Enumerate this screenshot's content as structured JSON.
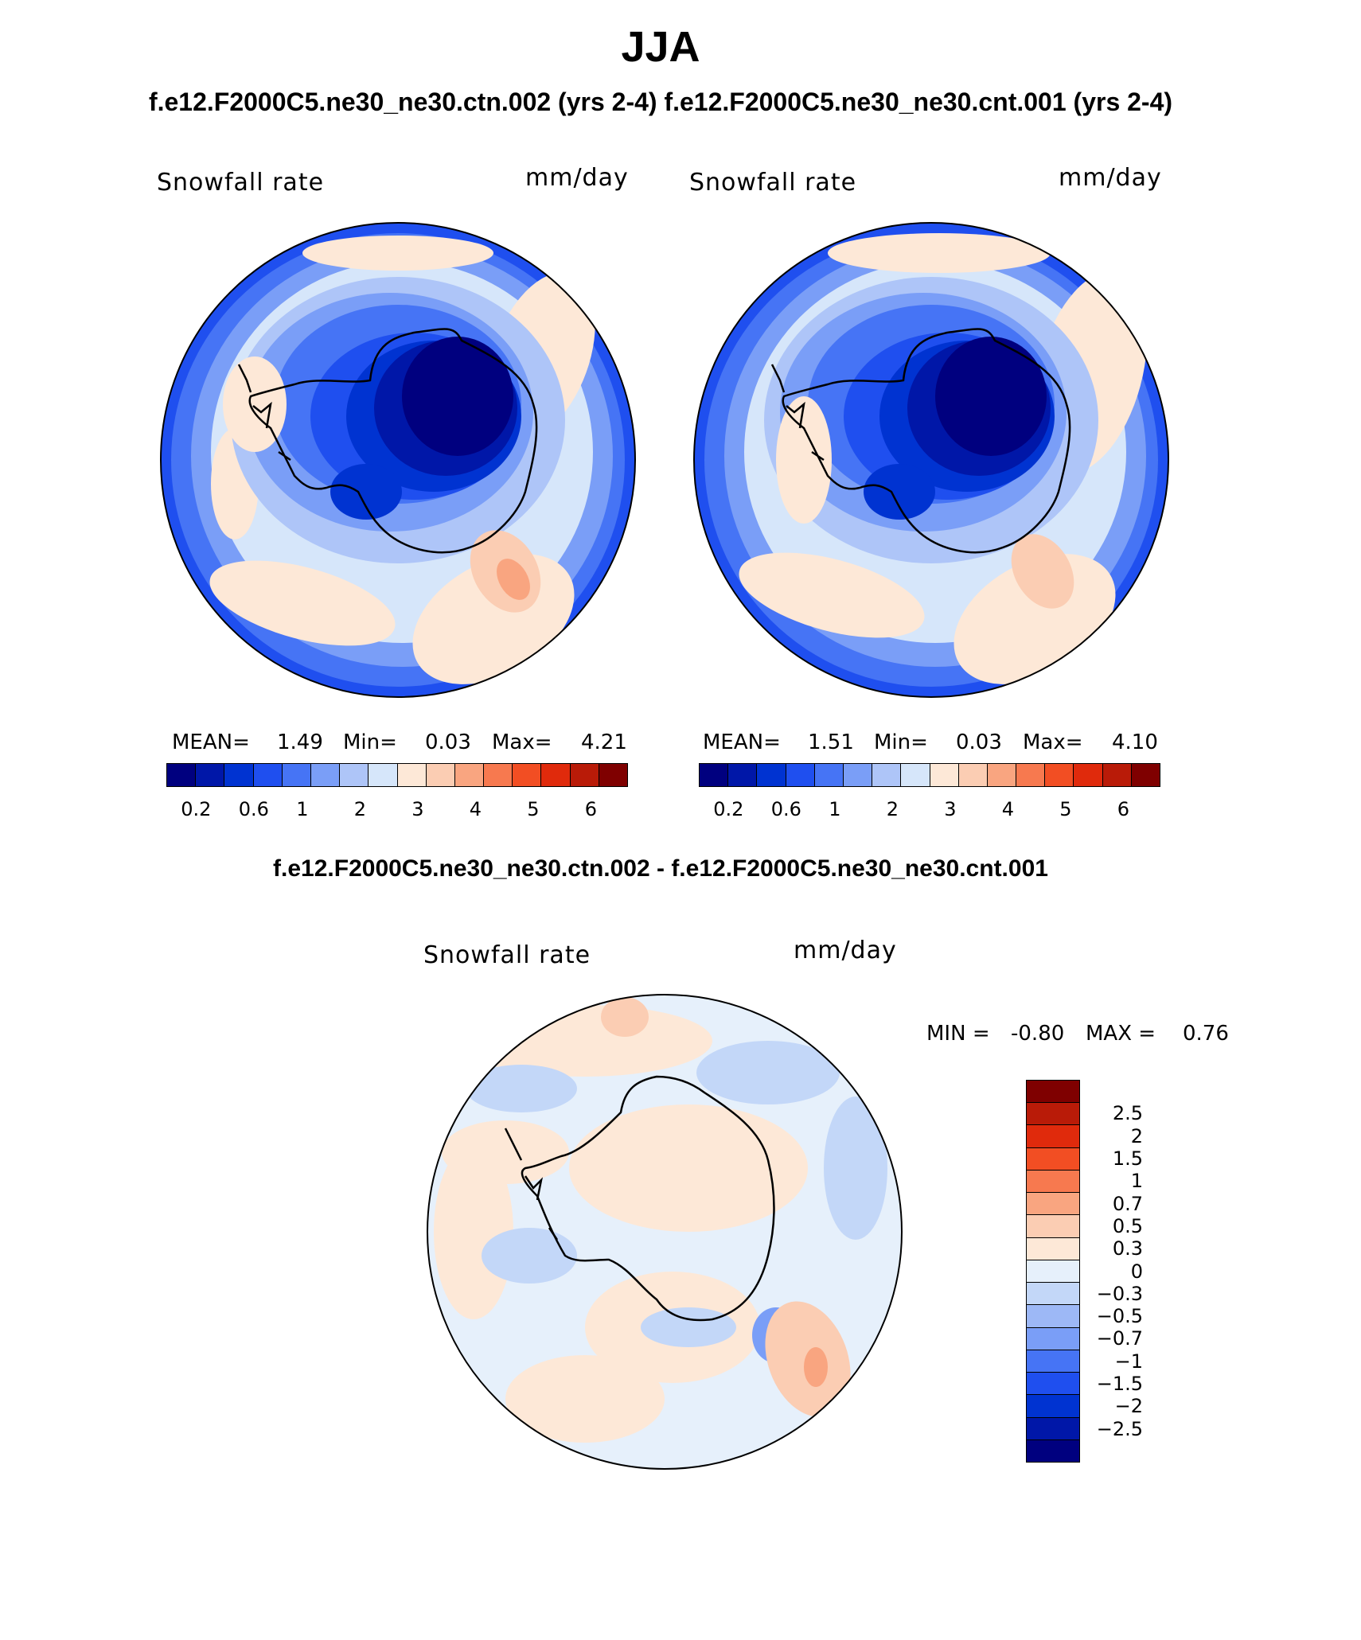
{
  "header": {
    "season": "JJA",
    "cases": "f.e12.F2000C5.ne30_ne30.ctn.002 (yrs 2-4) f.e12.F2000C5.ne30_ne30.cnt.001 (yrs 2-4)"
  },
  "panels": [
    {
      "variable": "Snowfall rate",
      "units": "mm/day",
      "mean_label": "MEAN=",
      "mean": "1.49",
      "min_label": "Min=",
      "min": "0.03",
      "max_label": "Max=",
      "max": "4.21"
    },
    {
      "variable": "Snowfall rate",
      "units": "mm/day",
      "mean_label": "MEAN=",
      "mean": "1.51",
      "min_label": "Min=",
      "min": "0.03",
      "max_label": "Max=",
      "max": "4.10"
    }
  ],
  "abs_colorbar": {
    "colors": [
      "#00007f",
      "#0017a8",
      "#0033d1",
      "#1f4fef",
      "#4674f5",
      "#7a9ef7",
      "#aec5f8",
      "#d6e6fa",
      "#fde8d7",
      "#fbcdb3",
      "#f9a580",
      "#f7794f",
      "#f24e23",
      "#e02a0c",
      "#b91b08",
      "#7f0000"
    ],
    "tick_labels": [
      "0.2",
      "0.6",
      "1",
      "2",
      "3",
      "4",
      "5",
      "6"
    ]
  },
  "diff_panel": {
    "title": "f.e12.F2000C5.ne30_ne30.ctn.002 - f.e12.F2000C5.ne30_ne30.cnt.001",
    "variable": "Snowfall rate",
    "units": "mm/day",
    "min_label": "MIN =",
    "min": "-0.80",
    "max_label": "MAX =",
    "max": "0.76",
    "colorbar": {
      "colors_top_to_bottom": [
        "#7f0000",
        "#b91b08",
        "#e02a0c",
        "#f24e23",
        "#f7794f",
        "#f9a580",
        "#fbcdb3",
        "#fde8d7",
        "#e6f0fb",
        "#c3d7f8",
        "#9db8f6",
        "#7a9ef7",
        "#4674f5",
        "#1f4fef",
        "#0033d1",
        "#0017a8",
        "#00007f"
      ],
      "tick_labels": [
        "2.5",
        "2",
        "1.5",
        "1",
        "0.7",
        "0.5",
        "0.3",
        "0",
        "−0.3",
        "−0.5",
        "−0.7",
        "−1",
        "−1.5",
        "−2",
        "−2.5"
      ]
    }
  }
}
